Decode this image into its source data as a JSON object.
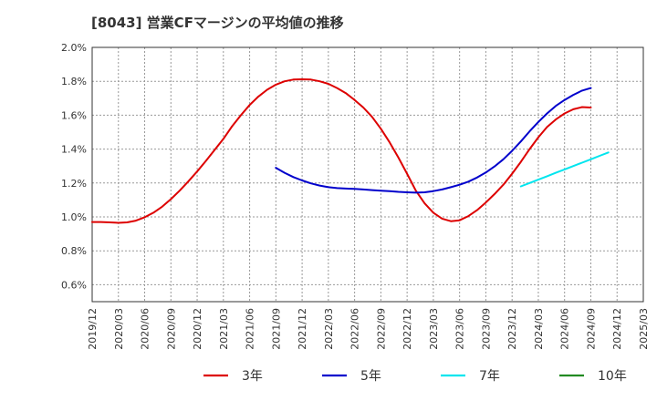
{
  "chart_data": {
    "type": "line",
    "title": "[8043]  営業CFマージンの平均値の推移",
    "y_tick_labels": [
      "0.6%",
      "0.8%",
      "1.0%",
      "1.2%",
      "1.4%",
      "1.6%",
      "1.8%",
      "2.0%"
    ],
    "y_ticks": [
      0.6,
      0.8,
      1.0,
      1.2,
      1.4,
      1.6,
      1.8,
      2.0
    ],
    "ylim": [
      0.5,
      2.0
    ],
    "x_tick_labels": [
      "2019/12",
      "2020/03",
      "2020/06",
      "2020/09",
      "2020/12",
      "2021/03",
      "2021/06",
      "2021/09",
      "2021/12",
      "2022/03",
      "2022/06",
      "2022/09",
      "2022/12",
      "2023/03",
      "2023/06",
      "2023/09",
      "2023/12",
      "2024/03",
      "2024/06",
      "2024/09",
      "2024/12",
      "2025/03"
    ],
    "x_range": [
      "2019/12",
      "2025/03"
    ],
    "grid": true,
    "legend_position": "bottom",
    "series": [
      {
        "name": "3年",
        "color": "#dd0000",
        "points": [
          [
            "2019/12",
            0.97
          ],
          [
            "2020/01",
            0.97
          ],
          [
            "2020/02",
            0.968
          ],
          [
            "2020/03",
            0.965
          ],
          [
            "2020/04",
            0.968
          ],
          [
            "2020/05",
            0.978
          ],
          [
            "2020/06",
            0.998
          ],
          [
            "2020/07",
            1.025
          ],
          [
            "2020/08",
            1.06
          ],
          [
            "2020/09",
            1.105
          ],
          [
            "2020/10",
            1.155
          ],
          [
            "2020/11",
            1.21
          ],
          [
            "2020/12",
            1.268
          ],
          [
            "2021/01",
            1.33
          ],
          [
            "2021/02",
            1.395
          ],
          [
            "2021/03",
            1.46
          ],
          [
            "2021/04",
            1.535
          ],
          [
            "2021/05",
            1.6
          ],
          [
            "2021/06",
            1.66
          ],
          [
            "2021/07",
            1.71
          ],
          [
            "2021/08",
            1.75
          ],
          [
            "2021/09",
            1.78
          ],
          [
            "2021/10",
            1.8
          ],
          [
            "2021/11",
            1.81
          ],
          [
            "2021/12",
            1.812
          ],
          [
            "2022/01",
            1.81
          ],
          [
            "2022/02",
            1.8
          ],
          [
            "2022/03",
            1.785
          ],
          [
            "2022/04",
            1.76
          ],
          [
            "2022/05",
            1.73
          ],
          [
            "2022/06",
            1.69
          ],
          [
            "2022/07",
            1.645
          ],
          [
            "2022/08",
            1.59
          ],
          [
            "2022/09",
            1.52
          ],
          [
            "2022/10",
            1.44
          ],
          [
            "2022/11",
            1.35
          ],
          [
            "2022/12",
            1.255
          ],
          [
            "2023/01",
            1.155
          ],
          [
            "2023/02",
            1.08
          ],
          [
            "2023/03",
            1.025
          ],
          [
            "2023/04",
            0.99
          ],
          [
            "2023/05",
            0.975
          ],
          [
            "2023/06",
            0.98
          ],
          [
            "2023/07",
            1.005
          ],
          [
            "2023/08",
            1.04
          ],
          [
            "2023/09",
            1.085
          ],
          [
            "2023/10",
            1.135
          ],
          [
            "2023/11",
            1.19
          ],
          [
            "2023/12",
            1.255
          ],
          [
            "2024/01",
            1.325
          ],
          [
            "2024/02",
            1.4
          ],
          [
            "2024/03",
            1.47
          ],
          [
            "2024/04",
            1.53
          ],
          [
            "2024/05",
            1.575
          ],
          [
            "2024/06",
            1.61
          ],
          [
            "2024/07",
            1.635
          ],
          [
            "2024/08",
            1.648
          ],
          [
            "2024/09",
            1.645
          ]
        ]
      },
      {
        "name": "5年",
        "color": "#0000cc",
        "points": [
          [
            "2021/09",
            1.29
          ],
          [
            "2021/10",
            1.26
          ],
          [
            "2021/11",
            1.235
          ],
          [
            "2021/12",
            1.215
          ],
          [
            "2022/01",
            1.198
          ],
          [
            "2022/02",
            1.185
          ],
          [
            "2022/03",
            1.175
          ],
          [
            "2022/04",
            1.17
          ],
          [
            "2022/05",
            1.167
          ],
          [
            "2022/06",
            1.165
          ],
          [
            "2022/07",
            1.162
          ],
          [
            "2022/08",
            1.158
          ],
          [
            "2022/09",
            1.155
          ],
          [
            "2022/10",
            1.152
          ],
          [
            "2022/11",
            1.148
          ],
          [
            "2022/12",
            1.145
          ],
          [
            "2023/01",
            1.143
          ],
          [
            "2023/02",
            1.145
          ],
          [
            "2023/03",
            1.152
          ],
          [
            "2023/04",
            1.162
          ],
          [
            "2023/05",
            1.175
          ],
          [
            "2023/06",
            1.19
          ],
          [
            "2023/07",
            1.208
          ],
          [
            "2023/08",
            1.232
          ],
          [
            "2023/09",
            1.262
          ],
          [
            "2023/10",
            1.298
          ],
          [
            "2023/11",
            1.34
          ],
          [
            "2023/12",
            1.39
          ],
          [
            "2024/01",
            1.445
          ],
          [
            "2024/02",
            1.505
          ],
          [
            "2024/03",
            1.56
          ],
          [
            "2024/04",
            1.61
          ],
          [
            "2024/05",
            1.655
          ],
          [
            "2024/06",
            1.69
          ],
          [
            "2024/07",
            1.72
          ],
          [
            "2024/08",
            1.745
          ],
          [
            "2024/09",
            1.76
          ]
        ]
      },
      {
        "name": "7年",
        "color": "#00e5ee",
        "points": [
          [
            "2024/01",
            1.18
          ],
          [
            "2024/02",
            1.2
          ],
          [
            "2024/03",
            1.22
          ],
          [
            "2024/04",
            1.24
          ],
          [
            "2024/05",
            1.26
          ],
          [
            "2024/06",
            1.28
          ],
          [
            "2024/07",
            1.3
          ],
          [
            "2024/08",
            1.32
          ],
          [
            "2024/09",
            1.34
          ],
          [
            "2024/10",
            1.36
          ],
          [
            "2024/11",
            1.38
          ]
        ]
      },
      {
        "name": "10年",
        "color": "#228b22",
        "points": []
      }
    ]
  }
}
